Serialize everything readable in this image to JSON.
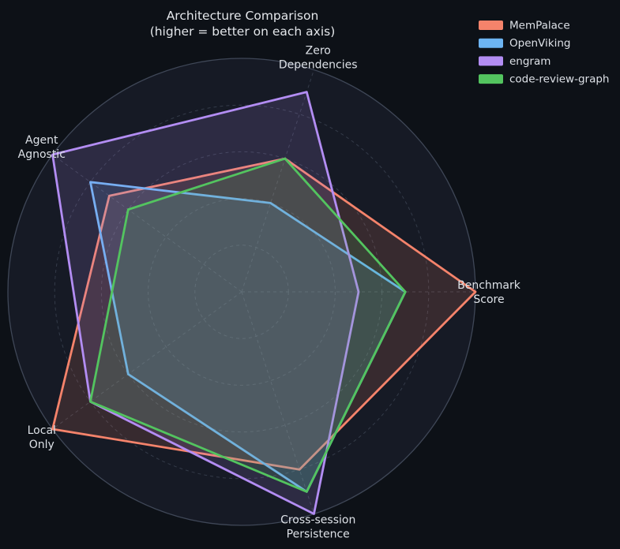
{
  "title": "Architecture Comparison",
  "subtitle": "(higher = better on each axis)",
  "colors": {
    "figure_background": "#0d1117",
    "plot_background": "#161a25",
    "outer_spine": "#3f4757",
    "grid": "#343b49",
    "text": "#dde1e7"
  },
  "chart_data": {
    "type": "radar",
    "title": "Architecture Comparison",
    "subtitle": "(higher = better on each axis)",
    "categories": [
      "Zero Dependencies",
      "Benchmark Score",
      "Cross-session Persistence",
      "Local Only",
      "Agent Agnostic"
    ],
    "category_label_lines": [
      [
        "Zero",
        "Dependencies"
      ],
      [
        "Benchmark",
        "Score"
      ],
      [
        "Cross-session",
        "Persistence"
      ],
      [
        "Local",
        "Only"
      ],
      [
        "Agent",
        "Agnostic"
      ]
    ],
    "rlim": [
      0,
      1
    ],
    "ring_levels": [
      0.2,
      0.4,
      0.6,
      0.8,
      1.0
    ],
    "radial_tick_labels_visible": false,
    "first_axis_angle_deg": 72,
    "axis_direction": "clockwise",
    "grid_style": "dashed-circles-and-spokes",
    "legend_position": "top-right",
    "fill_opacity": 0.15,
    "stroke_width": 2.8,
    "series": [
      {
        "name": "MemPalace",
        "color": "#f5836b",
        "values": [
          0.6,
          1.0,
          0.8,
          1.0,
          0.7
        ]
      },
      {
        "name": "OpenViking",
        "color": "#6db4f2",
        "values": [
          0.4,
          0.7,
          0.9,
          0.6,
          0.8
        ]
      },
      {
        "name": "engram",
        "color": "#b38df3",
        "values": [
          0.9,
          0.5,
          1.0,
          0.8,
          1.0
        ]
      },
      {
        "name": "code-review-graph",
        "color": "#53c45f",
        "values": [
          0.6,
          0.7,
          0.9,
          0.8,
          0.6
        ]
      }
    ]
  }
}
